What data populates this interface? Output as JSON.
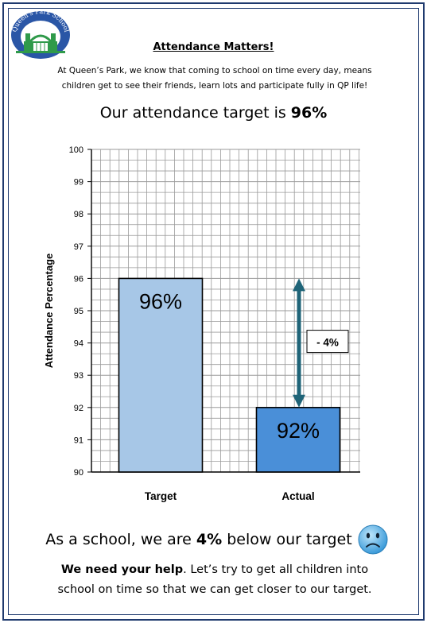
{
  "logo": {
    "text": "Queen's Park School",
    "icon": "school-gate-logo"
  },
  "header": {
    "title": "Attendance Matters!"
  },
  "intro": {
    "line1": "At Queen’s Park, we know that coming to school on time every day, means",
    "line2": "children get to see their friends, learn lots and participate fully in QP life!"
  },
  "target_line": {
    "prefix": "Our attendance target is ",
    "value": "96%"
  },
  "chart_data": {
    "type": "bar",
    "categories": [
      "Target",
      "Actual"
    ],
    "values": [
      96,
      92
    ],
    "bar_labels": [
      "96%",
      "92%"
    ],
    "bar_colors": [
      "#a7c7e7",
      "#4a8fd8"
    ],
    "xlabel": "",
    "ylabel": "Attendance Percentage",
    "ylim": [
      90,
      100
    ],
    "yticks": [
      90,
      91,
      92,
      93,
      94,
      95,
      96,
      97,
      98,
      99,
      100
    ],
    "grid": true,
    "annotation": {
      "text": "- 4%",
      "from": 92,
      "to": 96,
      "color": "#1f6478"
    }
  },
  "summary": {
    "prefix": "As a school, we are ",
    "value": "4%",
    "suffix": " below our target",
    "icon": "sad-face-icon"
  },
  "help": {
    "bold": "We need your help",
    "rest1": ". Let’s try to get all children into",
    "line2": "school on time so that we can get closer to our target."
  },
  "colors": {
    "border": "#1f3a6e",
    "arrow": "#1f6478"
  }
}
